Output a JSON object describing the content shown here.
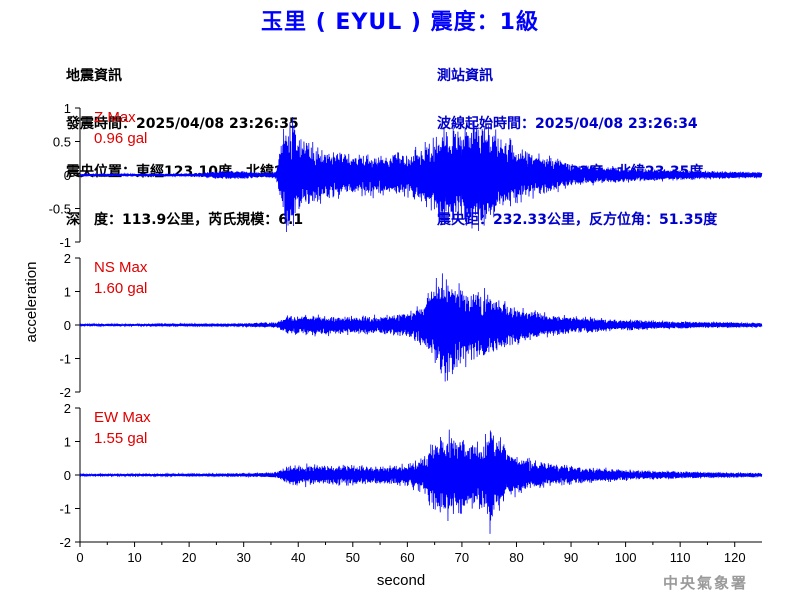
{
  "title": "玉里 ( EYUL ) 震度：1級",
  "earthquake_info": {
    "heading": "地震資訊",
    "time": "發震時間：2025/04/08 23:26:35",
    "location": "震央位置：東經123.10度，北緯24.66度",
    "depth_magnitude": "深　度：113.9公里，芮氏規模：6.1"
  },
  "station_info": {
    "heading": "測站資訊",
    "wave_start": "波線起始時間：2025/04/08 23:26:34",
    "location": "測站位置：東經121.32度，北緯23.35度",
    "distance_azimuth": "震央距：232.33公里，反方位角：51.35度"
  },
  "footer": "中央氣象署",
  "colors": {
    "trace": "#0000ff",
    "max_label": "#e00000",
    "title": "#0000ff",
    "axis": "#000000"
  },
  "chart_data": {
    "type": "line",
    "xlabel": "second",
    "ylabel": "acceleration",
    "xlim": [
      0,
      125
    ],
    "xticks": [
      0,
      10,
      20,
      30,
      40,
      50,
      60,
      70,
      80,
      90,
      100,
      110,
      120
    ],
    "grid": false,
    "panels": [
      {
        "component": "Z",
        "max_label": "Z Max",
        "max_value": "0.96 gal",
        "ylim": [
          -1,
          1
        ],
        "yticks": [
          "-1",
          "-0.5",
          "0",
          "0.5",
          "1"
        ],
        "envelope": {
          "t": [
            0,
            20,
            25,
            30,
            33,
            36,
            37,
            38,
            40,
            45,
            50,
            55,
            60,
            64,
            66,
            68,
            70,
            72,
            75,
            78,
            80,
            85,
            90,
            100,
            110,
            125
          ],
          "amp": [
            0.015,
            0.02,
            0.05,
            0.06,
            0.03,
            0.05,
            0.6,
            0.9,
            0.55,
            0.35,
            0.3,
            0.28,
            0.3,
            0.45,
            0.75,
            0.65,
            0.7,
            0.8,
            0.65,
            0.5,
            0.4,
            0.28,
            0.16,
            0.1,
            0.07,
            0.04
          ]
        }
      },
      {
        "component": "NS",
        "max_label": "NS Max",
        "max_value": "1.60 gal",
        "ylim": [
          -2,
          2
        ],
        "yticks": [
          "-2",
          "-1",
          "0",
          "1",
          "2"
        ],
        "envelope": {
          "t": [
            0,
            20,
            30,
            36,
            38,
            40,
            45,
            50,
            55,
            60,
            63,
            65,
            66,
            68,
            70,
            72,
            75,
            78,
            80,
            85,
            90,
            100,
            110,
            125
          ],
          "amp": [
            0.03,
            0.04,
            0.05,
            0.08,
            0.25,
            0.3,
            0.28,
            0.25,
            0.25,
            0.35,
            0.6,
            1.2,
            1.5,
            1.3,
            1.1,
            1.0,
            0.9,
            0.7,
            0.55,
            0.35,
            0.25,
            0.15,
            0.1,
            0.06
          ]
        }
      },
      {
        "component": "EW",
        "max_label": "EW Max",
        "max_value": "1.55 gal",
        "ylim": [
          -2,
          2
        ],
        "yticks": [
          "-2",
          "-1",
          "0",
          "1",
          "2"
        ],
        "envelope": {
          "t": [
            0,
            20,
            30,
            36,
            38,
            40,
            45,
            50,
            55,
            60,
            63,
            65,
            66,
            68,
            70,
            72,
            74,
            75,
            78,
            80,
            85,
            90,
            100,
            110,
            125
          ],
          "amp": [
            0.03,
            0.04,
            0.05,
            0.08,
            0.25,
            0.3,
            0.3,
            0.28,
            0.25,
            0.3,
            0.55,
            1.0,
            1.3,
            1.2,
            1.1,
            0.9,
            1.0,
            1.5,
            0.8,
            0.55,
            0.35,
            0.25,
            0.15,
            0.1,
            0.06
          ]
        }
      }
    ]
  }
}
